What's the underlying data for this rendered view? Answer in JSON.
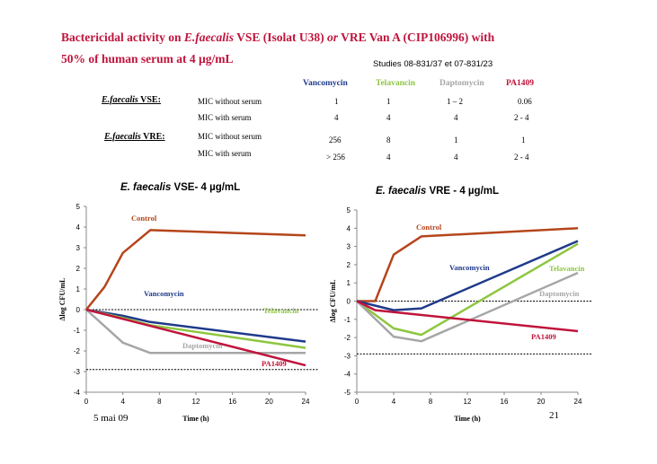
{
  "title": {
    "line1_a": "Bactericidal activity on ",
    "line1_b": "E.faecalis",
    "line1_c": " VSE (Isolat U38) ",
    "line1_d": "or",
    "line1_e": " VRE Van A (CIP106996) with",
    "line2": "50% of human serum at 4 µg/mL"
  },
  "studies": "Studies 08-831/37 et 07-831/23",
  "mic_table": {
    "columns": [
      {
        "label": "Vancomycin",
        "color": "#1f3a8a"
      },
      {
        "label": "Telavancin",
        "color": "#8dc63f"
      },
      {
        "label": "Daptomycin",
        "color": "#a6a6a6"
      },
      {
        "label": "PA1409",
        "color": "#c0143c"
      }
    ],
    "groups": [
      {
        "organism": "E.faecalis",
        "strain": " VSE:",
        "rows": [
          {
            "label": "MIC without serum",
            "values": [
              "1",
              "1",
              "1 – 2",
              "0.06"
            ]
          },
          {
            "label": "MIC with serum",
            "values": [
              "4",
              "4",
              "4",
              "2 - 4"
            ]
          }
        ]
      },
      {
        "organism": "E.faecalis",
        "strain": " VRE:",
        "rows": [
          {
            "label": "MIC without serum",
            "values": [
              "256",
              "8",
              "1",
              "1"
            ]
          },
          {
            "label": "MIC with serum",
            "values": [
              "> 256",
              "4",
              "4",
              "2 - 4"
            ]
          }
        ]
      }
    ]
  },
  "chart_data": [
    {
      "type": "line",
      "title_italic": "E. faecalis",
      "title_rest": " VSE- 4 µg/mL",
      "xlabel": "Time (h)",
      "ylabel": "Δlog CFU/mL",
      "xlim": [
        0,
        24
      ],
      "ylim": [
        -4,
        5
      ],
      "xticks": [
        0,
        4,
        8,
        12,
        16,
        20,
        24
      ],
      "yticks": [
        5,
        4,
        3,
        2,
        1,
        0,
        -1,
        -2,
        -3,
        -4
      ],
      "reference_lines": [
        0,
        -2.9
      ],
      "series": [
        {
          "name": "Control",
          "color": "#b5451b",
          "x": [
            0,
            2,
            4,
            7,
            24
          ],
          "y": [
            0,
            1.1,
            2.75,
            3.85,
            3.6
          ]
        },
        {
          "name": "Vancomycin",
          "color": "#1f3a8a",
          "x": [
            0,
            4,
            7,
            24
          ],
          "y": [
            0,
            -0.3,
            -0.6,
            -1.55
          ]
        },
        {
          "name": "Telavancin",
          "color": "#8dc63f",
          "x": [
            0,
            4,
            7,
            24
          ],
          "y": [
            0,
            -0.4,
            -0.75,
            -1.85
          ]
        },
        {
          "name": "Daptomycin",
          "color": "#a6a6a6",
          "x": [
            0,
            4,
            7,
            24
          ],
          "y": [
            0,
            -1.6,
            -2.1,
            -2.1
          ]
        },
        {
          "name": "PA1409",
          "color": "#c0143c",
          "x": [
            0,
            24
          ],
          "y": [
            0,
            -2.7
          ]
        }
      ]
    },
    {
      "type": "line",
      "title_italic": "E. faecalis",
      "title_rest": " VRE - 4 µg/mL",
      "xlabel": "Time (h)",
      "ylabel": "Δlog CFU/mL",
      "xlim": [
        0,
        24
      ],
      "ylim": [
        -5,
        5
      ],
      "xticks": [
        0,
        4,
        8,
        12,
        16,
        20,
        24
      ],
      "yticks": [
        5,
        4,
        3,
        2,
        1,
        0,
        -1,
        -2,
        -3,
        -4,
        -5
      ],
      "reference_lines": [
        0,
        -2.9
      ],
      "series": [
        {
          "name": "Control",
          "color": "#b5451b",
          "x": [
            0,
            2,
            4,
            7,
            24
          ],
          "y": [
            0,
            0,
            2.55,
            3.55,
            4.0
          ]
        },
        {
          "name": "Vancomycin",
          "color": "#1f3a8a",
          "x": [
            0,
            4,
            7,
            24
          ],
          "y": [
            0,
            -0.5,
            -0.4,
            3.3
          ]
        },
        {
          "name": "Telavancin",
          "color": "#8dc63f",
          "x": [
            0,
            4,
            7,
            24
          ],
          "y": [
            0,
            -1.5,
            -1.85,
            3.15
          ]
        },
        {
          "name": "Daptomycin",
          "color": "#a6a6a6",
          "x": [
            0,
            4,
            7,
            24
          ],
          "y": [
            0,
            -1.95,
            -2.2,
            1.55
          ]
        },
        {
          "name": "PA1409",
          "color": "#c0143c",
          "x": [
            0,
            2,
            24
          ],
          "y": [
            0,
            -0.5,
            -1.65
          ]
        }
      ]
    }
  ],
  "footer": {
    "date": "5 mai 09",
    "page": "21"
  }
}
